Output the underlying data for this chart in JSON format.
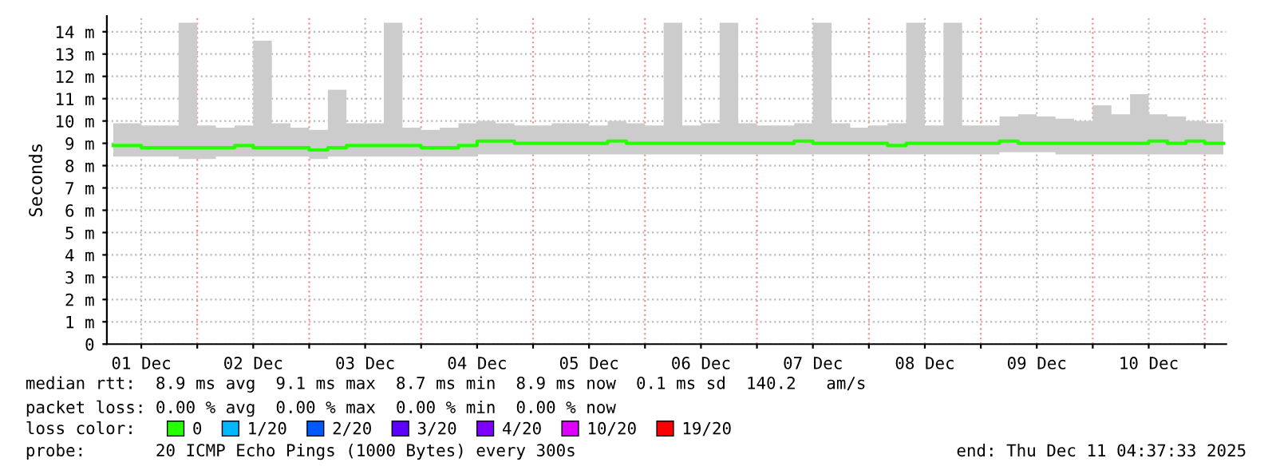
{
  "chart_data": {
    "type": "line",
    "ylabel": "Seconds",
    "legend_title": "loss color:",
    "legend": "bottom",
    "grid": true,
    "xlim": [
      "2025-12-01T04:37",
      "2025-12-11T04:37"
    ],
    "xticks": [
      {
        "value": "2025-12-01T12:00",
        "label": "01 Dec"
      },
      {
        "value": "2025-12-02T00:00",
        "label": null
      },
      {
        "value": "2025-12-02T12:00",
        "label": "02 Dec"
      },
      {
        "value": "2025-12-03T00:00",
        "label": null
      },
      {
        "value": "2025-12-03T12:00",
        "label": "03 Dec"
      },
      {
        "value": "2025-12-04T00:00",
        "label": null
      },
      {
        "value": "2025-12-04T12:00",
        "label": "04 Dec"
      },
      {
        "value": "2025-12-05T00:00",
        "label": null
      },
      {
        "value": "2025-12-05T12:00",
        "label": "05 Dec"
      },
      {
        "value": "2025-12-06T00:00",
        "label": null
      },
      {
        "value": "2025-12-06T12:00",
        "label": "06 Dec"
      },
      {
        "value": "2025-12-07T00:00",
        "label": null
      },
      {
        "value": "2025-12-07T12:00",
        "label": "07 Dec"
      },
      {
        "value": "2025-12-08T00:00",
        "label": null
      },
      {
        "value": "2025-12-08T12:00",
        "label": "08 Dec"
      },
      {
        "value": "2025-12-09T00:00",
        "label": null
      },
      {
        "value": "2025-12-09T12:00",
        "label": "09 Dec"
      },
      {
        "value": "2025-12-10T00:00",
        "label": null
      },
      {
        "value": "2025-12-10T12:00",
        "label": "10 Dec"
      },
      {
        "value": "2025-12-11T00:00",
        "label": null
      }
    ],
    "ylim": [
      0,
      14.7
    ],
    "yticks": [
      0,
      {
        "value": 1,
        "label": "1 m"
      },
      {
        "value": 2,
        "label": "2 m"
      },
      {
        "value": 3,
        "label": "3 m"
      },
      {
        "value": 4,
        "label": "4 m"
      },
      {
        "value": 5,
        "label": "5 m"
      },
      {
        "value": 6,
        "label": "6 m"
      },
      {
        "value": 7,
        "label": "7 m"
      },
      {
        "value": 8,
        "label": "8 m"
      },
      {
        "value": 9,
        "label": "9 m"
      },
      {
        "value": 10,
        "label": "10 m"
      },
      {
        "value": 11,
        "label": "11 m"
      },
      {
        "value": 12,
        "label": "12 m"
      },
      {
        "value": 13,
        "label": "13 m"
      },
      {
        "value": 14,
        "label": "14 m"
      }
    ],
    "x": [
      "2025-12-01T06:00",
      "2025-12-01T10:00",
      "2025-12-01T14:00",
      "2025-12-01T18:00",
      "2025-12-01T22:00",
      "2025-12-02T02:00",
      "2025-12-02T06:00",
      "2025-12-02T10:00",
      "2025-12-02T14:00",
      "2025-12-02T18:00",
      "2025-12-02T22:00",
      "2025-12-03T02:00",
      "2025-12-03T06:00",
      "2025-12-03T10:00",
      "2025-12-03T14:00",
      "2025-12-03T18:00",
      "2025-12-03T22:00",
      "2025-12-04T02:00",
      "2025-12-04T06:00",
      "2025-12-04T10:00",
      "2025-12-04T14:00",
      "2025-12-04T18:00",
      "2025-12-04T22:00",
      "2025-12-05T02:00",
      "2025-12-05T06:00",
      "2025-12-05T10:00",
      "2025-12-05T14:00",
      "2025-12-05T18:00",
      "2025-12-05T22:00",
      "2025-12-06T02:00",
      "2025-12-06T06:00",
      "2025-12-06T10:00",
      "2025-12-06T14:00",
      "2025-12-06T18:00",
      "2025-12-06T22:00",
      "2025-12-07T02:00",
      "2025-12-07T06:00",
      "2025-12-07T10:00",
      "2025-12-07T14:00",
      "2025-12-07T18:00",
      "2025-12-07T22:00",
      "2025-12-08T02:00",
      "2025-12-08T06:00",
      "2025-12-08T10:00",
      "2025-12-08T14:00",
      "2025-12-08T18:00",
      "2025-12-08T22:00",
      "2025-12-09T02:00",
      "2025-12-09T06:00",
      "2025-12-09T10:00",
      "2025-12-09T14:00",
      "2025-12-09T18:00",
      "2025-12-09T22:00",
      "2025-12-10T02:00",
      "2025-12-10T06:00",
      "2025-12-10T10:00",
      "2025-12-10T14:00",
      "2025-12-10T18:00",
      "2025-12-10T22:00",
      "2025-12-11T02:00",
      "2025-12-11T04:00"
    ],
    "series": [
      {
        "name": "0",
        "color": "#26ff00",
        "values": [
          8.9,
          8.9,
          8.8,
          8.8,
          8.8,
          8.8,
          8.8,
          8.9,
          8.8,
          8.8,
          8.8,
          8.7,
          8.8,
          8.9,
          8.9,
          8.9,
          8.9,
          8.8,
          8.8,
          8.9,
          9.1,
          9.1,
          9.0,
          9.0,
          9.0,
          9.0,
          9.0,
          9.1,
          9.0,
          9.0,
          9.0,
          9.0,
          9.0,
          9.0,
          9.0,
          9.0,
          9.0,
          9.1,
          9.0,
          9.0,
          9.0,
          9.0,
          8.9,
          9.0,
          9.0,
          9.0,
          9.0,
          9.0,
          9.1,
          9.0,
          9.0,
          9.0,
          9.0,
          9.0,
          9.0,
          9.0,
          9.1,
          9.0,
          9.1,
          9.0,
          9.0
        ],
        "lower": [
          8.4,
          8.4,
          8.4,
          8.4,
          8.3,
          8.3,
          8.4,
          8.4,
          8.4,
          8.4,
          8.4,
          8.3,
          8.4,
          8.4,
          8.4,
          8.4,
          8.4,
          8.4,
          8.4,
          8.4,
          8.5,
          8.5,
          8.5,
          8.5,
          8.5,
          8.5,
          8.5,
          8.5,
          8.5,
          8.5,
          8.5,
          8.5,
          8.5,
          8.5,
          8.5,
          8.5,
          8.5,
          8.5,
          8.5,
          8.5,
          8.5,
          8.5,
          8.5,
          8.5,
          8.5,
          8.5,
          8.5,
          8.5,
          8.6,
          8.6,
          8.6,
          8.5,
          8.5,
          8.5,
          8.5,
          8.5,
          8.5,
          8.5,
          8.5,
          8.5,
          8.5
        ],
        "upper": [
          9.9,
          9.9,
          9.8,
          9.8,
          14.4,
          9.8,
          9.7,
          9.8,
          13.6,
          9.9,
          9.7,
          9.6,
          11.4,
          9.9,
          9.9,
          14.4,
          9.7,
          9.6,
          9.7,
          9.9,
          10.0,
          9.9,
          9.8,
          9.8,
          9.9,
          9.9,
          9.8,
          10.0,
          9.9,
          9.8,
          14.4,
          9.8,
          9.9,
          14.4,
          9.9,
          9.8,
          9.8,
          9.9,
          14.4,
          9.9,
          9.7,
          9.8,
          9.9,
          14.4,
          9.8,
          14.4,
          9.8,
          9.8,
          10.2,
          10.3,
          10.2,
          10.1,
          10.0,
          10.7,
          10.3,
          11.2,
          10.3,
          10.2,
          10.0,
          9.9,
          9.9
        ]
      },
      {
        "name": "1/20",
        "color": "#00b8ff",
        "values": [
          null,
          null,
          null,
          null,
          null,
          null,
          null,
          null,
          null,
          null,
          null,
          null,
          null,
          null,
          null,
          null,
          null,
          null,
          null,
          null,
          null,
          null,
          null,
          null,
          null,
          null,
          null,
          null,
          null,
          null,
          null,
          null,
          null,
          null,
          null,
          null,
          null,
          null,
          null,
          null,
          null,
          null,
          null,
          null,
          null,
          null,
          null,
          null,
          null,
          null,
          null,
          null,
          null,
          null,
          null,
          null,
          null,
          null,
          null,
          null,
          null
        ]
      },
      {
        "name": "2/20",
        "color": "#0059ff",
        "values": [
          null,
          null,
          null,
          null,
          null,
          null,
          null,
          null,
          null,
          null,
          null,
          null,
          null,
          null,
          null,
          null,
          null,
          null,
          null,
          null,
          null,
          null,
          null,
          null,
          null,
          null,
          null,
          null,
          null,
          null,
          null,
          null,
          null,
          null,
          null,
          null,
          null,
          null,
          null,
          null,
          null,
          null,
          null,
          null,
          null,
          null,
          null,
          null,
          null,
          null,
          null,
          null,
          null,
          null,
          null,
          null,
          null,
          null,
          null,
          null,
          null
        ]
      },
      {
        "name": "3/20",
        "color": "#5e00ff",
        "values": [
          null,
          null,
          null,
          null,
          null,
          null,
          null,
          null,
          null,
          null,
          null,
          null,
          null,
          null,
          null,
          null,
          null,
          null,
          null,
          null,
          null,
          null,
          null,
          null,
          null,
          null,
          null,
          null,
          null,
          null,
          null,
          null,
          null,
          null,
          null,
          null,
          null,
          null,
          null,
          null,
          null,
          null,
          null,
          null,
          null,
          null,
          null,
          null,
          null,
          null,
          null,
          null,
          null,
          null,
          null,
          null,
          null,
          null,
          null,
          null,
          null
        ]
      },
      {
        "name": "4/20",
        "color": "#7e00ff",
        "values": [
          null,
          null,
          null,
          null,
          null,
          null,
          null,
          null,
          null,
          null,
          null,
          null,
          null,
          null,
          null,
          null,
          null,
          null,
          null,
          null,
          null,
          null,
          null,
          null,
          null,
          null,
          null,
          null,
          null,
          null,
          null,
          null,
          null,
          null,
          null,
          null,
          null,
          null,
          null,
          null,
          null,
          null,
          null,
          null,
          null,
          null,
          null,
          null,
          null,
          null,
          null,
          null,
          null,
          null,
          null,
          null,
          null,
          null,
          null,
          null,
          null
        ]
      },
      {
        "name": "10/20",
        "color": "#dd00ff",
        "values": [
          null,
          null,
          null,
          null,
          null,
          null,
          null,
          null,
          null,
          null,
          null,
          null,
          null,
          null,
          null,
          null,
          null,
          null,
          null,
          null,
          null,
          null,
          null,
          null,
          null,
          null,
          null,
          null,
          null,
          null,
          null,
          null,
          null,
          null,
          null,
          null,
          null,
          null,
          null,
          null,
          null,
          null,
          null,
          null,
          null,
          null,
          null,
          null,
          null,
          null,
          null,
          null,
          null,
          null,
          null,
          null,
          null,
          null,
          null,
          null,
          null
        ]
      },
      {
        "name": "19/20",
        "color": "#ff0000",
        "values": [
          null,
          null,
          null,
          null,
          null,
          null,
          null,
          null,
          null,
          null,
          null,
          null,
          null,
          null,
          null,
          null,
          null,
          null,
          null,
          null,
          null,
          null,
          null,
          null,
          null,
          null,
          null,
          null,
          null,
          null,
          null,
          null,
          null,
          null,
          null,
          null,
          null,
          null,
          null,
          null,
          null,
          null,
          null,
          null,
          null,
          null,
          null,
          null,
          null,
          null,
          null,
          null,
          null,
          null,
          null,
          null,
          null,
          null,
          null,
          null,
          null
        ]
      }
    ],
    "annotations": [
      "median rtt:  8.9 ms avg  9.1 ms max  8.7 ms min  8.9 ms now  0.1 ms sd  140.2   am/s",
      "packet loss: 0.00 % avg  0.00 % max  0.00 % min  0.00 % now",
      "probe:       20 ICMP Echo Pings (1000 Bytes) every 300s",
      "end: Thu Dec 11 04:37:33 2025"
    ]
  }
}
